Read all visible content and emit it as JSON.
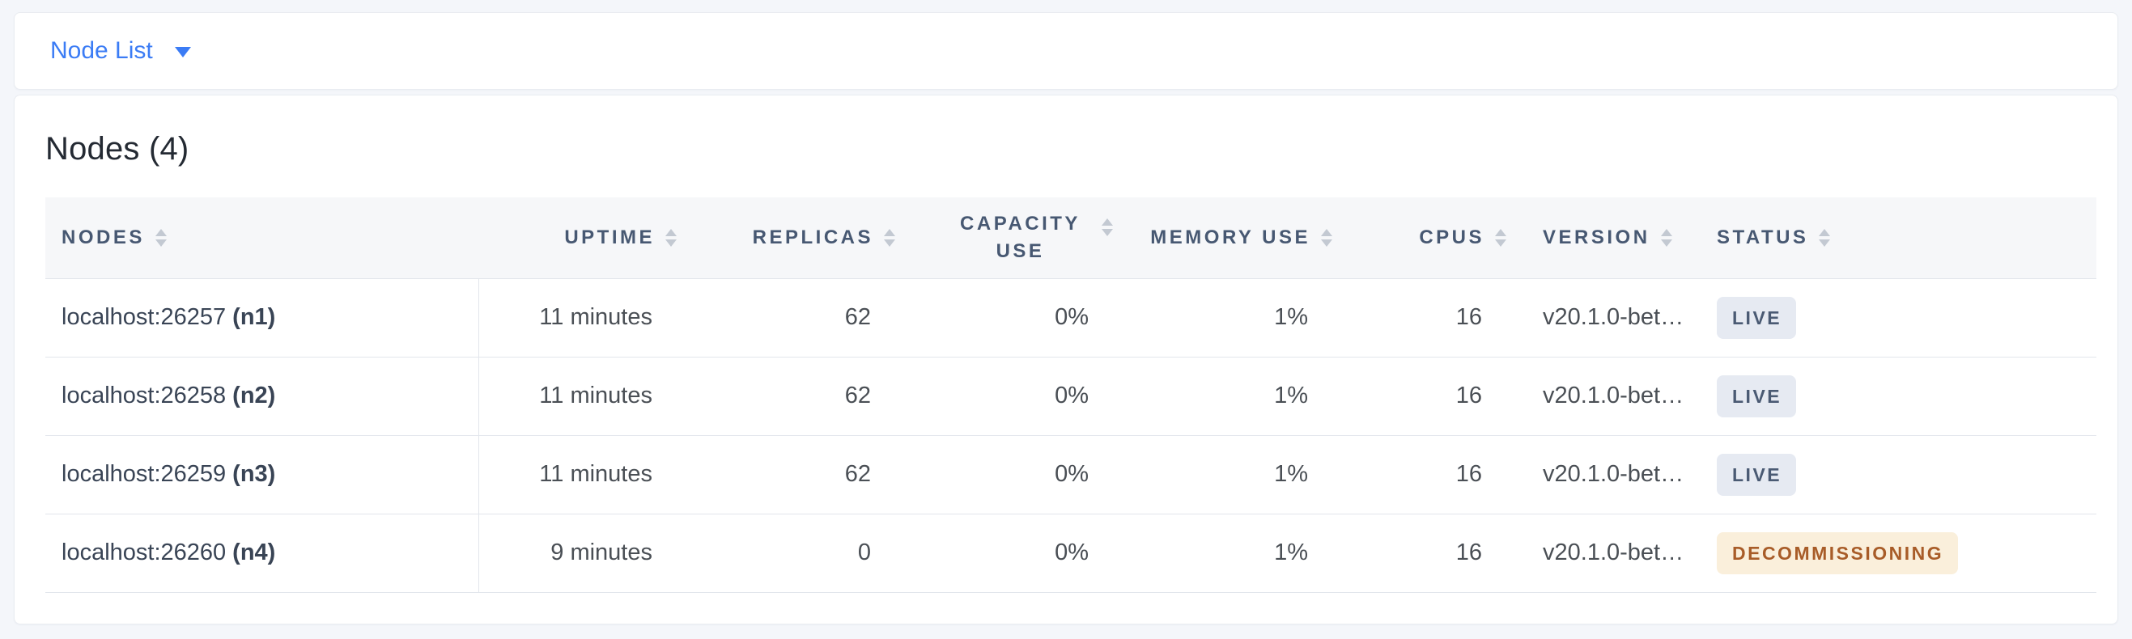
{
  "view_switcher": {
    "label": "Node List"
  },
  "panel": {
    "title": "Nodes (4)"
  },
  "table": {
    "columns": [
      {
        "label": "NODES"
      },
      {
        "label": "UPTIME"
      },
      {
        "label": "REPLICAS"
      },
      {
        "label": "CAPACITY USE"
      },
      {
        "label": "MEMORY USE"
      },
      {
        "label": "CPUS"
      },
      {
        "label": "VERSION"
      },
      {
        "label": "STATUS"
      }
    ],
    "rows": [
      {
        "address": "localhost:26257",
        "node_id": "(n1)",
        "uptime": "11 minutes",
        "replicas": "62",
        "capacity_use": "0%",
        "memory_use": "1%",
        "cpus": "16",
        "version": "v20.1.0-bet…",
        "status": "LIVE",
        "status_type": "live"
      },
      {
        "address": "localhost:26258",
        "node_id": "(n2)",
        "uptime": "11 minutes",
        "replicas": "62",
        "capacity_use": "0%",
        "memory_use": "1%",
        "cpus": "16",
        "version": "v20.1.0-bet…",
        "status": "LIVE",
        "status_type": "live"
      },
      {
        "address": "localhost:26259",
        "node_id": "(n3)",
        "uptime": "11 minutes",
        "replicas": "62",
        "capacity_use": "0%",
        "memory_use": "1%",
        "cpus": "16",
        "version": "v20.1.0-bet…",
        "status": "LIVE",
        "status_type": "live"
      },
      {
        "address": "localhost:26260",
        "node_id": "(n4)",
        "uptime": "9 minutes",
        "replicas": "0",
        "capacity_use": "0%",
        "memory_use": "1%",
        "cpus": "16",
        "version": "v20.1.0-bet…",
        "status": "DECOMMISSIONING",
        "status_type": "decommissioning"
      }
    ]
  },
  "colors": {
    "accent_blue": "#3B7CF5",
    "page_background": "#F4F6FA",
    "header_text": "#475872",
    "live_badge_bg": "#E6EAF2",
    "live_badge_text": "#4A5A73",
    "decommissioning_badge_bg": "#FAEFDB",
    "decommissioning_badge_text": "#A85C28"
  }
}
